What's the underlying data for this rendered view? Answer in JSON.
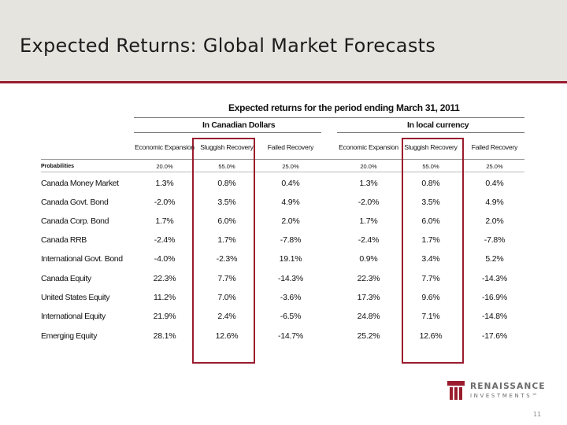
{
  "slide": {
    "title": "Expected Returns: Global Market Forecasts",
    "page_number": "11"
  },
  "table": {
    "title": "Expected returns for the period ending March 31, 2011",
    "groups": [
      "In Canadian Dollars",
      "In local currency"
    ],
    "scenarios": [
      "Economic Expansion",
      "Sluggish Recovery",
      "Failed Recovery",
      "Economic Expansion",
      "Sluggish Recovery",
      "Failed Recovery"
    ],
    "probabilities_label": "Probabilities",
    "probabilities": [
      "20.0%",
      "55.0%",
      "25.0%",
      "20.0%",
      "55.0%",
      "25.0%"
    ],
    "rows": [
      {
        "label": "Canada Money Market",
        "values": [
          "1.3%",
          "0.8%",
          "0.4%",
          "1.3%",
          "0.8%",
          "0.4%"
        ]
      },
      {
        "label": "Canada Govt. Bond",
        "values": [
          "-2.0%",
          "3.5%",
          "4.9%",
          "-2.0%",
          "3.5%",
          "4.9%"
        ]
      },
      {
        "label": "Canada Corp. Bond",
        "values": [
          "1.7%",
          "6.0%",
          "2.0%",
          "1.7%",
          "6.0%",
          "2.0%"
        ]
      },
      {
        "label": "Canada RRB",
        "values": [
          "-2.4%",
          "1.7%",
          "-7.8%",
          "-2.4%",
          "1.7%",
          "-7.8%"
        ]
      },
      {
        "label": "International Govt. Bond",
        "values": [
          "-4.0%",
          "-2.3%",
          "19.1%",
          "0.9%",
          "3.4%",
          "5.2%"
        ]
      },
      {
        "label": "Canada Equity",
        "values": [
          "22.3%",
          "7.7%",
          "-14.3%",
          "22.3%",
          "7.7%",
          "-14.3%"
        ]
      },
      {
        "label": "United States Equity",
        "values": [
          "11.2%",
          "7.0%",
          "-3.6%",
          "17.3%",
          "9.6%",
          "-16.9%"
        ]
      },
      {
        "label": "International Equity",
        "values": [
          "21.9%",
          "2.4%",
          "-6.5%",
          "24.8%",
          "7.1%",
          "-14.8%"
        ]
      },
      {
        "label": "Emerging Equity",
        "values": [
          "28.1%",
          "12.6%",
          "-14.7%",
          "25.2%",
          "12.6%",
          "-17.6%"
        ]
      }
    ]
  },
  "logo": {
    "line1": "RENAISSANCE",
    "line2": "INVESTMENTS™"
  },
  "colors": {
    "accent": "#9a1c2e",
    "header_bg": "#e6e4df"
  }
}
